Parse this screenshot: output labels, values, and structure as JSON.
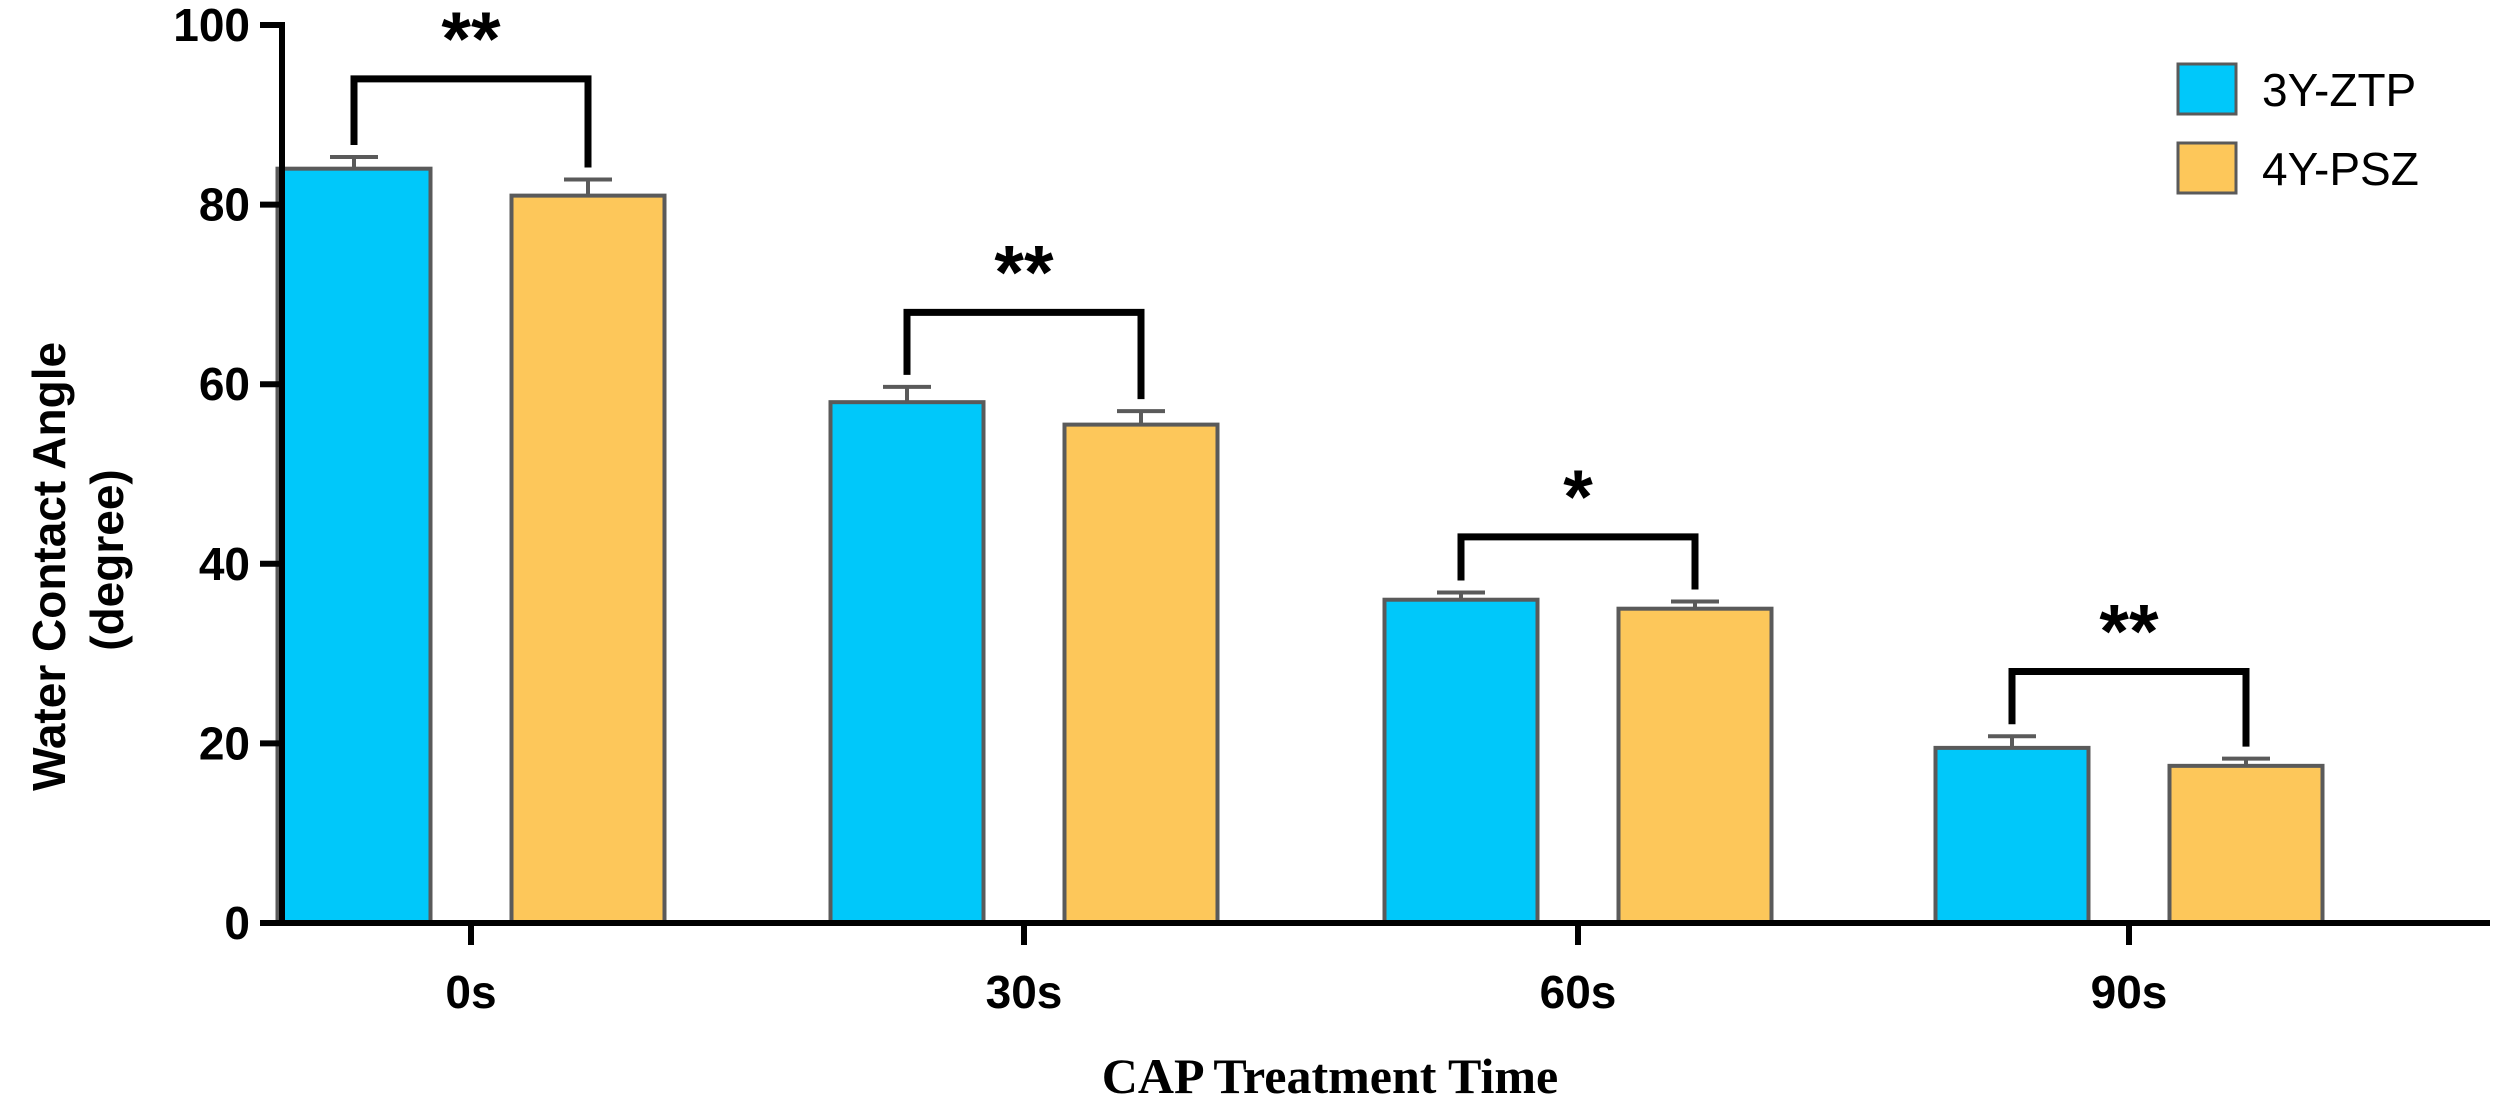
{
  "chart_data": {
    "type": "bar",
    "title": "",
    "xlabel": "CAP Treatment Time",
    "ylabel_lines": [
      "Water Contact Angle",
      "(degree)"
    ],
    "categories": [
      "0s",
      "30s",
      "60s",
      "90s"
    ],
    "ylim": [
      0,
      100
    ],
    "yticks": [
      0,
      20,
      40,
      60,
      80,
      100
    ],
    "ytick_labels": [
      "0",
      "20",
      "40",
      "60",
      "80",
      "100"
    ],
    "grid": false,
    "legend_position": "top-right",
    "series": [
      {
        "name": "3Y-ZTP",
        "color": "#00C8FA",
        "values": [
          84,
          58,
          36,
          19.5
        ],
        "errors": [
          1.3,
          1.7,
          0.8,
          1.3
        ]
      },
      {
        "name": "4Y-PSZ",
        "color": "#FDC75A",
        "values": [
          81,
          55.5,
          35,
          17.5
        ],
        "errors": [
          1.8,
          1.5,
          0.8,
          0.8
        ]
      }
    ],
    "significance": [
      {
        "category": "0s",
        "label": "**",
        "bracket_y": 94
      },
      {
        "category": "30s",
        "label": "**",
        "bracket_y": 68
      },
      {
        "category": "60s",
        "label": "*",
        "bracket_y": 43
      },
      {
        "category": "90s",
        "label": "**",
        "bracket_y": 28
      }
    ],
    "bar_edge_color": "#5a5a5a",
    "axis_color": "#000000"
  }
}
